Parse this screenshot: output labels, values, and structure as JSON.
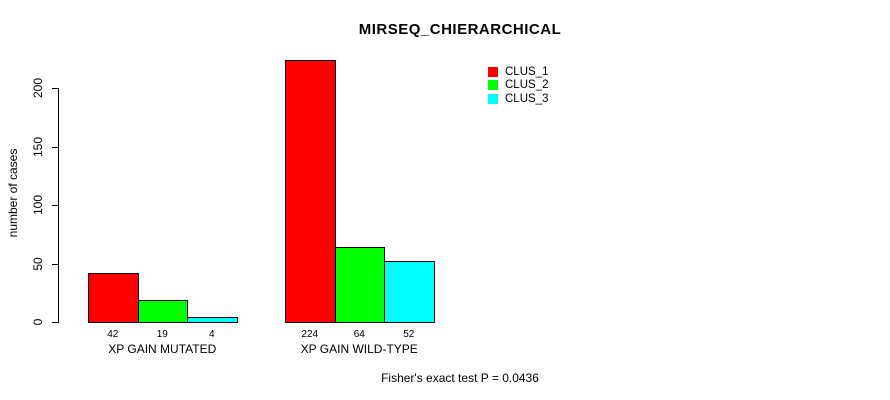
{
  "chart_data": {
    "type": "bar",
    "title": "MIRSEQ_CHIERARCHICAL",
    "ylabel": "number of cases",
    "xlabel": "",
    "categories": [
      "XP GAIN MUTATED",
      "XP GAIN WILD-TYPE"
    ],
    "series": [
      {
        "name": "CLUS_1",
        "color": "#FF0000",
        "values": [
          42,
          224
        ]
      },
      {
        "name": "CLUS_2",
        "color": "#00FF00",
        "values": [
          19,
          64
        ]
      },
      {
        "name": "CLUS_3",
        "color": "#00FFFF",
        "values": [
          4,
          52
        ]
      }
    ],
    "value_labels": [
      [
        "42",
        "19",
        "4"
      ],
      [
        "224",
        "64",
        "52"
      ]
    ],
    "yticks": [
      0,
      50,
      100,
      150,
      200
    ],
    "ylim": [
      0,
      200
    ],
    "grid": false,
    "legend_position": "top-right",
    "bar_border_color": "#000000",
    "text_color": "#000000",
    "background_color": "#FFFFFF",
    "footer": "Fisher's exact test P = 0.0436"
  }
}
